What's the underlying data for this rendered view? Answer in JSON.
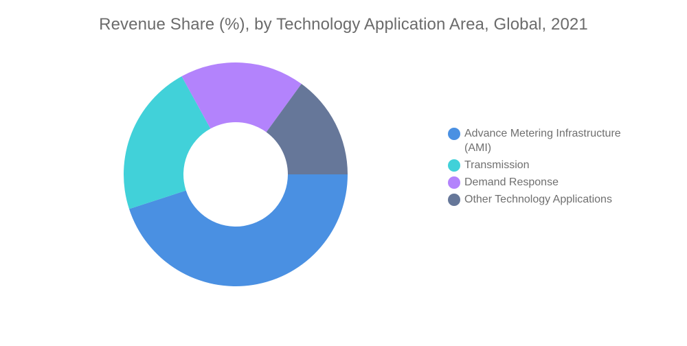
{
  "chart_data": {
    "type": "pie",
    "variant": "donut",
    "title": "Revenue Share (%), by Technology Application Area, Global, 2021",
    "series": [
      {
        "name": "Advance Metering Infrastructure (AMI)",
        "value": 45,
        "color": "#4a90e2"
      },
      {
        "name": "Transmission",
        "value": 22,
        "color": "#41d1d9"
      },
      {
        "name": "Demand Response",
        "value": 18,
        "color": "#b383fc"
      },
      {
        "name": "Other Technology Applications",
        "value": 15,
        "color": "#667799"
      }
    ],
    "legend_position": "right",
    "start_direction": "clockwise from 3 o'clock, AMI first"
  }
}
